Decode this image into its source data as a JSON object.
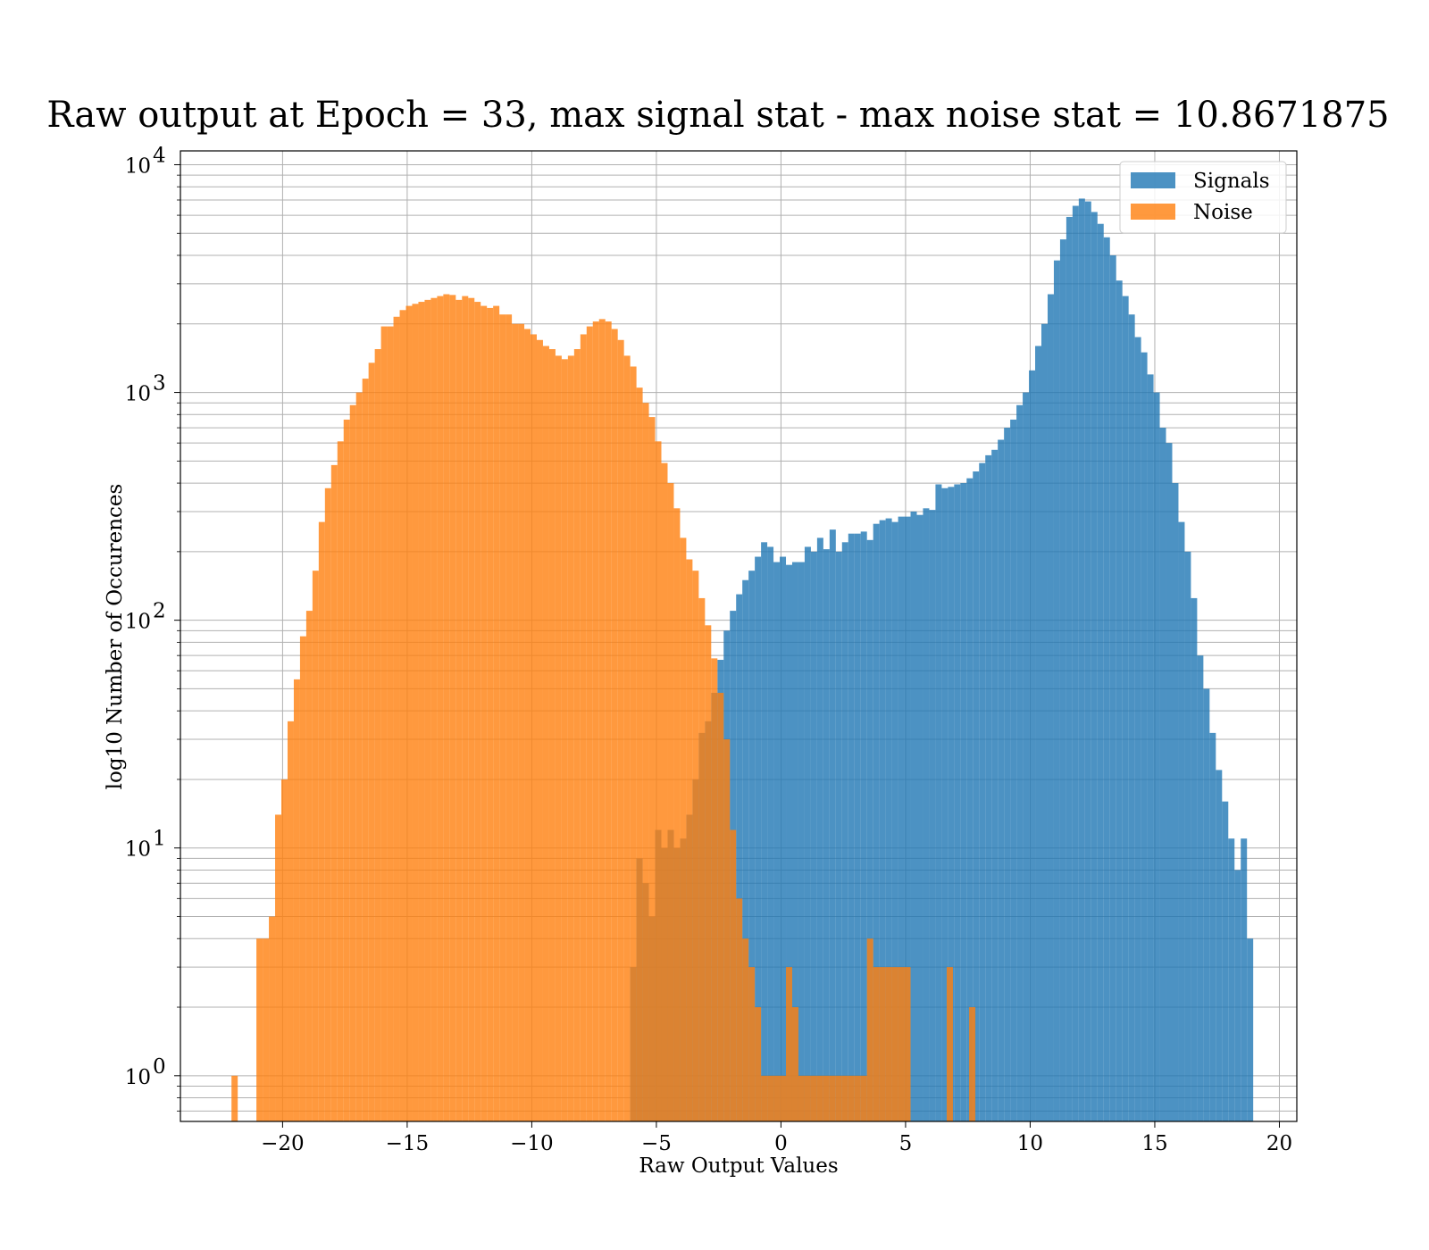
{
  "chart_data": {
    "type": "bar",
    "title": "Raw output at Epoch = 33, max signal stat - max noise stat = 10.8671875",
    "xlabel": "Raw Output Values",
    "ylabel": "log10 Number of Occurences",
    "xlim": [
      -24.1,
      20.7
    ],
    "ylim": [
      0.63,
      11500
    ],
    "yscale": "log",
    "grid": true,
    "legend_position": "top-right",
    "x_ticks": [
      -20,
      -15,
      -10,
      -5,
      0,
      5,
      10,
      15,
      20
    ],
    "x_tick_labels": [
      "−20",
      "−15",
      "−10",
      "−5",
      "0",
      "5",
      "10",
      "15",
      "20"
    ],
    "y_ticks": [
      1,
      10,
      100,
      1000,
      10000
    ],
    "y_tick_exponents": [
      "0",
      "1",
      "2",
      "3",
      "4"
    ],
    "series": [
      {
        "name": "Signals",
        "color": "#1f77b4",
        "opacity": 0.8,
        "bins": [
          [
            -6.05,
            -5.8,
            3
          ],
          [
            -5.8,
            -5.55,
            9
          ],
          [
            -5.55,
            -5.3,
            7
          ],
          [
            -5.3,
            -5.05,
            5
          ],
          [
            -5.05,
            -4.8,
            12
          ],
          [
            -4.8,
            -4.55,
            10
          ],
          [
            -4.55,
            -4.3,
            12
          ],
          [
            -4.3,
            -4.05,
            10
          ],
          [
            -4.05,
            -3.8,
            11
          ],
          [
            -3.8,
            -3.55,
            14
          ],
          [
            -3.55,
            -3.3,
            20
          ],
          [
            -3.3,
            -3.05,
            32
          ],
          [
            -3.05,
            -2.8,
            36
          ],
          [
            -2.8,
            -2.55,
            48
          ],
          [
            -2.55,
            -2.3,
            67
          ],
          [
            -2.3,
            -2.05,
            90
          ],
          [
            -2.05,
            -1.8,
            110
          ],
          [
            -1.8,
            -1.55,
            130
          ],
          [
            -1.55,
            -1.3,
            150
          ],
          [
            -1.3,
            -1.05,
            165
          ],
          [
            -1.05,
            -0.8,
            190
          ],
          [
            -0.8,
            -0.55,
            220
          ],
          [
            -0.55,
            -0.3,
            210
          ],
          [
            -0.3,
            -0.05,
            180
          ],
          [
            -0.05,
            0.2,
            190
          ],
          [
            0.2,
            0.45,
            175
          ],
          [
            0.45,
            0.7,
            180
          ],
          [
            0.7,
            0.95,
            180
          ],
          [
            0.95,
            1.2,
            210
          ],
          [
            1.2,
            1.45,
            200
          ],
          [
            1.45,
            1.7,
            230
          ],
          [
            1.7,
            1.95,
            205
          ],
          [
            1.95,
            2.2,
            250
          ],
          [
            2.2,
            2.45,
            200
          ],
          [
            2.45,
            2.7,
            220
          ],
          [
            2.7,
            2.95,
            240
          ],
          [
            2.95,
            3.2,
            240
          ],
          [
            3.2,
            3.45,
            245
          ],
          [
            3.45,
            3.7,
            225
          ],
          [
            3.7,
            3.95,
            265
          ],
          [
            3.95,
            4.2,
            275
          ],
          [
            4.2,
            4.45,
            280
          ],
          [
            4.45,
            4.7,
            270
          ],
          [
            4.7,
            4.95,
            285
          ],
          [
            4.95,
            5.2,
            285
          ],
          [
            5.2,
            5.45,
            300
          ],
          [
            5.45,
            5.7,
            290
          ],
          [
            5.7,
            5.95,
            310
          ],
          [
            5.95,
            6.2,
            305
          ],
          [
            6.2,
            6.45,
            395
          ],
          [
            6.45,
            6.7,
            380
          ],
          [
            6.7,
            6.95,
            385
          ],
          [
            6.95,
            7.2,
            395
          ],
          [
            7.2,
            7.45,
            400
          ],
          [
            7.45,
            7.7,
            420
          ],
          [
            7.7,
            7.95,
            450
          ],
          [
            7.95,
            8.2,
            490
          ],
          [
            8.2,
            8.45,
            530
          ],
          [
            8.45,
            8.7,
            560
          ],
          [
            8.7,
            8.95,
            620
          ],
          [
            8.95,
            9.2,
            700
          ],
          [
            9.2,
            9.45,
            760
          ],
          [
            9.45,
            9.7,
            880
          ],
          [
            9.7,
            9.95,
            1000
          ],
          [
            9.95,
            10.2,
            1250
          ],
          [
            10.2,
            10.45,
            1600
          ],
          [
            10.45,
            10.7,
            2000
          ],
          [
            10.7,
            10.95,
            2700
          ],
          [
            10.95,
            11.2,
            3800
          ],
          [
            11.2,
            11.45,
            4700
          ],
          [
            11.45,
            11.7,
            5900
          ],
          [
            11.7,
            11.95,
            6600
          ],
          [
            11.95,
            12.2,
            7100
          ],
          [
            12.2,
            12.45,
            6900
          ],
          [
            12.45,
            12.7,
            6200
          ],
          [
            12.7,
            12.95,
            5500
          ],
          [
            12.95,
            13.2,
            4800
          ],
          [
            13.2,
            13.45,
            4000
          ],
          [
            13.45,
            13.7,
            3100
          ],
          [
            13.7,
            13.95,
            2650
          ],
          [
            13.95,
            14.2,
            2200
          ],
          [
            14.2,
            14.45,
            1750
          ],
          [
            14.45,
            14.7,
            1500
          ],
          [
            14.7,
            14.95,
            1200
          ],
          [
            14.95,
            15.2,
            1000
          ],
          [
            15.2,
            15.45,
            700
          ],
          [
            15.45,
            15.7,
            600
          ],
          [
            15.7,
            15.95,
            400
          ],
          [
            15.95,
            16.2,
            270
          ],
          [
            16.2,
            16.45,
            200
          ],
          [
            16.45,
            16.7,
            125
          ],
          [
            16.7,
            16.95,
            70
          ],
          [
            16.95,
            17.2,
            50
          ],
          [
            17.2,
            17.45,
            32
          ],
          [
            17.45,
            17.7,
            22
          ],
          [
            17.7,
            17.95,
            16
          ],
          [
            17.95,
            18.2,
            11
          ],
          [
            18.2,
            18.45,
            8
          ],
          [
            18.45,
            18.7,
            11
          ],
          [
            18.7,
            18.95,
            4
          ]
        ]
      },
      {
        "name": "Noise",
        "color": "#ff7f0e",
        "opacity": 0.8,
        "bins": [
          [
            -22.05,
            -21.8,
            1
          ],
          [
            -21.05,
            -20.8,
            4
          ],
          [
            -20.8,
            -20.55,
            4
          ],
          [
            -20.55,
            -20.3,
            5
          ],
          [
            -20.3,
            -20.05,
            14
          ],
          [
            -20.05,
            -19.8,
            20
          ],
          [
            -19.8,
            -19.55,
            36
          ],
          [
            -19.55,
            -19.3,
            55
          ],
          [
            -19.3,
            -19.05,
            85
          ],
          [
            -19.05,
            -18.8,
            110
          ],
          [
            -18.8,
            -18.55,
            165
          ],
          [
            -18.55,
            -18.3,
            270
          ],
          [
            -18.3,
            -18.05,
            380
          ],
          [
            -18.05,
            -17.8,
            480
          ],
          [
            -17.8,
            -17.55,
            610
          ],
          [
            -17.55,
            -17.3,
            760
          ],
          [
            -17.3,
            -17.05,
            880
          ],
          [
            -17.05,
            -16.8,
            1000
          ],
          [
            -16.8,
            -16.55,
            1150
          ],
          [
            -16.55,
            -16.3,
            1350
          ],
          [
            -16.3,
            -16.05,
            1550
          ],
          [
            -16.05,
            -15.8,
            1950
          ],
          [
            -15.8,
            -15.55,
            1950
          ],
          [
            -15.55,
            -15.3,
            2150
          ],
          [
            -15.3,
            -15.05,
            2300
          ],
          [
            -15.05,
            -14.8,
            2400
          ],
          [
            -14.8,
            -14.55,
            2450
          ],
          [
            -14.55,
            -14.3,
            2500
          ],
          [
            -14.3,
            -14.05,
            2550
          ],
          [
            -14.05,
            -13.8,
            2600
          ],
          [
            -13.8,
            -13.55,
            2650
          ],
          [
            -13.55,
            -13.3,
            2700
          ],
          [
            -13.3,
            -13.05,
            2680
          ],
          [
            -13.05,
            -12.8,
            2550
          ],
          [
            -12.8,
            -12.55,
            2650
          ],
          [
            -12.55,
            -12.3,
            2600
          ],
          [
            -12.3,
            -12.05,
            2500
          ],
          [
            -12.05,
            -11.8,
            2400
          ],
          [
            -11.8,
            -11.55,
            2350
          ],
          [
            -11.55,
            -11.3,
            2400
          ],
          [
            -11.3,
            -11.05,
            2200
          ],
          [
            -11.05,
            -10.8,
            2200
          ],
          [
            -10.8,
            -10.55,
            2000
          ],
          [
            -10.55,
            -10.3,
            2000
          ],
          [
            -10.3,
            -10.05,
            1900
          ],
          [
            -10.05,
            -9.8,
            1800
          ],
          [
            -9.8,
            -9.55,
            1700
          ],
          [
            -9.55,
            -9.3,
            1600
          ],
          [
            -9.3,
            -9.05,
            1550
          ],
          [
            -9.05,
            -8.8,
            1450
          ],
          [
            -8.8,
            -8.55,
            1400
          ],
          [
            -8.55,
            -8.3,
            1450
          ],
          [
            -8.3,
            -8.05,
            1550
          ],
          [
            -8.05,
            -7.8,
            1800
          ],
          [
            -7.8,
            -7.55,
            1950
          ],
          [
            -7.55,
            -7.3,
            2050
          ],
          [
            -7.3,
            -7.05,
            2100
          ],
          [
            -7.05,
            -6.8,
            2050
          ],
          [
            -6.8,
            -6.55,
            1900
          ],
          [
            -6.55,
            -6.3,
            1700
          ],
          [
            -6.3,
            -6.05,
            1450
          ],
          [
            -6.05,
            -5.8,
            1300
          ],
          [
            -5.8,
            -5.55,
            1050
          ],
          [
            -5.55,
            -5.3,
            900
          ],
          [
            -5.3,
            -5.05,
            780
          ],
          [
            -5.05,
            -4.8,
            610
          ],
          [
            -4.8,
            -4.55,
            490
          ],
          [
            -4.55,
            -4.3,
            400
          ],
          [
            -4.3,
            -4.05,
            310
          ],
          [
            -4.05,
            -3.8,
            230
          ],
          [
            -3.8,
            -3.55,
            185
          ],
          [
            -3.55,
            -3.3,
            165
          ],
          [
            -3.3,
            -3.05,
            125
          ],
          [
            -3.05,
            -2.8,
            95
          ],
          [
            -2.8,
            -2.55,
            68
          ],
          [
            -2.55,
            -2.3,
            48
          ],
          [
            -2.3,
            -2.05,
            30
          ],
          [
            -2.05,
            -1.8,
            12
          ],
          [
            -1.8,
            -1.55,
            6
          ],
          [
            -1.55,
            -1.3,
            4
          ],
          [
            -1.3,
            -1.05,
            3
          ],
          [
            -1.05,
            -0.8,
            2
          ],
          [
            -0.8,
            -0.55,
            1
          ],
          [
            -0.55,
            -0.3,
            1
          ],
          [
            -0.3,
            -0.05,
            1
          ],
          [
            -0.05,
            0.2,
            1
          ],
          [
            0.2,
            0.45,
            3
          ],
          [
            0.45,
            0.7,
            2
          ],
          [
            0.7,
            0.95,
            1
          ],
          [
            0.95,
            1.2,
            1
          ],
          [
            1.2,
            1.45,
            1
          ],
          [
            1.45,
            1.7,
            1
          ],
          [
            1.7,
            1.95,
            1
          ],
          [
            1.95,
            2.2,
            1
          ],
          [
            2.2,
            2.45,
            1
          ],
          [
            2.45,
            2.7,
            1
          ],
          [
            2.7,
            2.95,
            1
          ],
          [
            2.95,
            3.2,
            1
          ],
          [
            3.2,
            3.45,
            1
          ],
          [
            3.45,
            3.7,
            4
          ],
          [
            3.7,
            3.95,
            3
          ],
          [
            3.95,
            4.2,
            3
          ],
          [
            4.2,
            4.45,
            3
          ],
          [
            4.45,
            4.7,
            3
          ],
          [
            4.7,
            4.95,
            3
          ],
          [
            4.95,
            5.2,
            3
          ],
          [
            6.65,
            6.9,
            3
          ],
          [
            7.55,
            7.8,
            2
          ]
        ]
      }
    ]
  }
}
